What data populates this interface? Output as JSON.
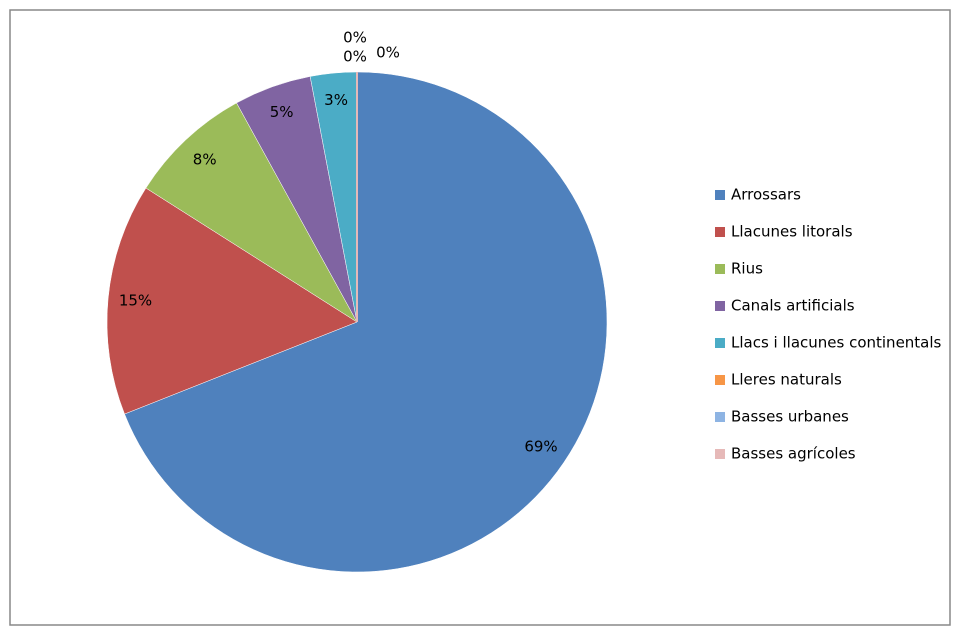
{
  "chart_data": {
    "type": "pie",
    "categories": [
      "Arrossars",
      "Llacunes litorals",
      "Rius",
      "Canals artificials",
      "Llacs i llacunes continentals",
      "Lleres naturals",
      "Basses urbanes",
      "Basses agrícoles"
    ],
    "values": [
      69,
      15,
      8,
      5,
      3,
      0,
      0,
      0
    ],
    "value_labels": [
      "69%",
      "15%",
      "8%",
      "5%",
      "3%",
      "0%",
      "0%",
      "0%"
    ],
    "colors": [
      "#4f81bd",
      "#c0504d",
      "#9bbb59",
      "#8064a2",
      "#4bacc6",
      "#f79646",
      "#8eb4e3",
      "#e6b9b8"
    ],
    "legend": "right"
  }
}
